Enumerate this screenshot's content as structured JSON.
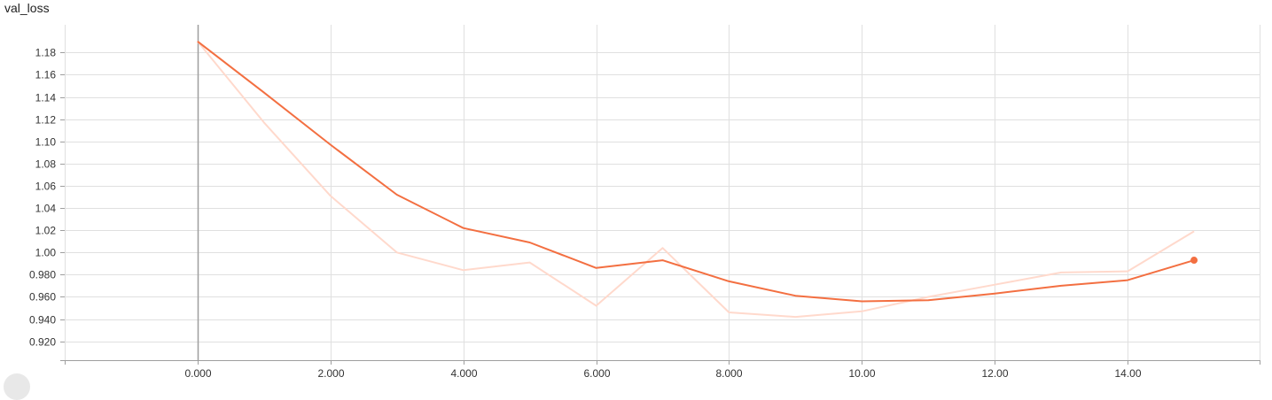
{
  "chart_data": {
    "type": "line",
    "title": "val_loss",
    "xlabel": "",
    "ylabel": "",
    "xlim": [
      -2.0,
      16.0
    ],
    "ylim": [
      0.903,
      1.205
    ],
    "x_ticks": [
      0,
      2,
      4,
      6,
      8,
      10,
      12,
      14
    ],
    "x_tick_labels": [
      "0.000",
      "2.000",
      "4.000",
      "6.000",
      "8.000",
      "10.00",
      "12.00",
      "14.00"
    ],
    "y_ticks": [
      0.92,
      0.94,
      0.96,
      0.98,
      1.0,
      1.02,
      1.04,
      1.06,
      1.08,
      1.1,
      1.12,
      1.14,
      1.16,
      1.18
    ],
    "y_tick_labels": [
      "0.920",
      "0.940",
      "0.960",
      "0.980",
      "1.00",
      "1.02",
      "1.04",
      "1.06",
      "1.08",
      "1.10",
      "1.12",
      "1.14",
      "1.16",
      "1.18"
    ],
    "grid": true,
    "series": [
      {
        "style": "raw",
        "color": "#ffd9cc",
        "x": [
          0,
          1,
          2,
          3,
          4,
          5,
          6,
          7,
          8,
          9,
          10,
          11,
          12,
          13,
          14,
          15
        ],
        "values": [
          1.19,
          1.117,
          1.051,
          1.0,
          0.984,
          0.991,
          0.952,
          1.004,
          0.946,
          0.942,
          0.947,
          0.96,
          0.971,
          0.982,
          0.983,
          1.019
        ]
      },
      {
        "style": "smoothed",
        "color": "#f36f41",
        "x": [
          0,
          1,
          2,
          3,
          4,
          5,
          6,
          7,
          8,
          9,
          10,
          11,
          12,
          13,
          14,
          15
        ],
        "values": [
          1.19,
          1.144,
          1.097,
          1.052,
          1.022,
          1.009,
          0.986,
          0.993,
          0.974,
          0.961,
          0.956,
          0.957,
          0.963,
          0.97,
          0.975,
          0.993
        ]
      }
    ]
  }
}
